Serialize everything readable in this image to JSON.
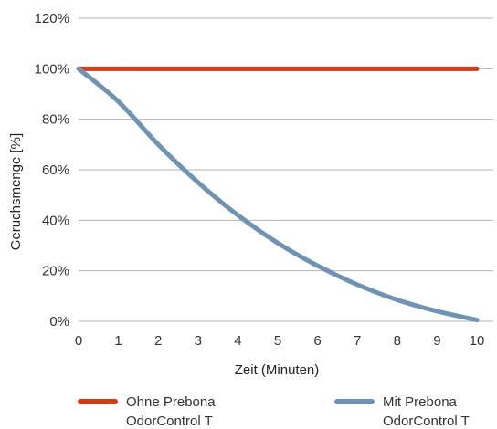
{
  "chart_data": {
    "type": "line",
    "xlabel": "Zeit (Minuten)",
    "ylabel": "Geruchsmenge [%]",
    "x": [
      0,
      1,
      2,
      3,
      4,
      5,
      6,
      7,
      8,
      9,
      10
    ],
    "x_ticks": [
      "0",
      "1",
      "2",
      "3",
      "4",
      "5",
      "6",
      "7",
      "8",
      "9",
      "10"
    ],
    "y_ticks": [
      "0%",
      "20%",
      "40%",
      "60%",
      "80%",
      "100%",
      "120%"
    ],
    "xlim": [
      0,
      10
    ],
    "ylim": [
      0,
      120
    ],
    "grid": true,
    "legend_position": "bottom",
    "series": [
      {
        "name_lines": [
          "Ohne Prebona",
          "OdorControl T"
        ],
        "color": "#d13c16",
        "values": [
          100,
          100,
          100,
          100,
          100,
          100,
          100,
          100,
          100,
          100,
          100
        ]
      },
      {
        "name_lines": [
          "Mit Prebona",
          "OdorControl T"
        ],
        "color": "#6e93b5",
        "values": [
          100,
          87,
          70,
          55,
          42,
          31,
          22,
          14.5,
          8.5,
          4,
          0.5
        ]
      }
    ]
  }
}
